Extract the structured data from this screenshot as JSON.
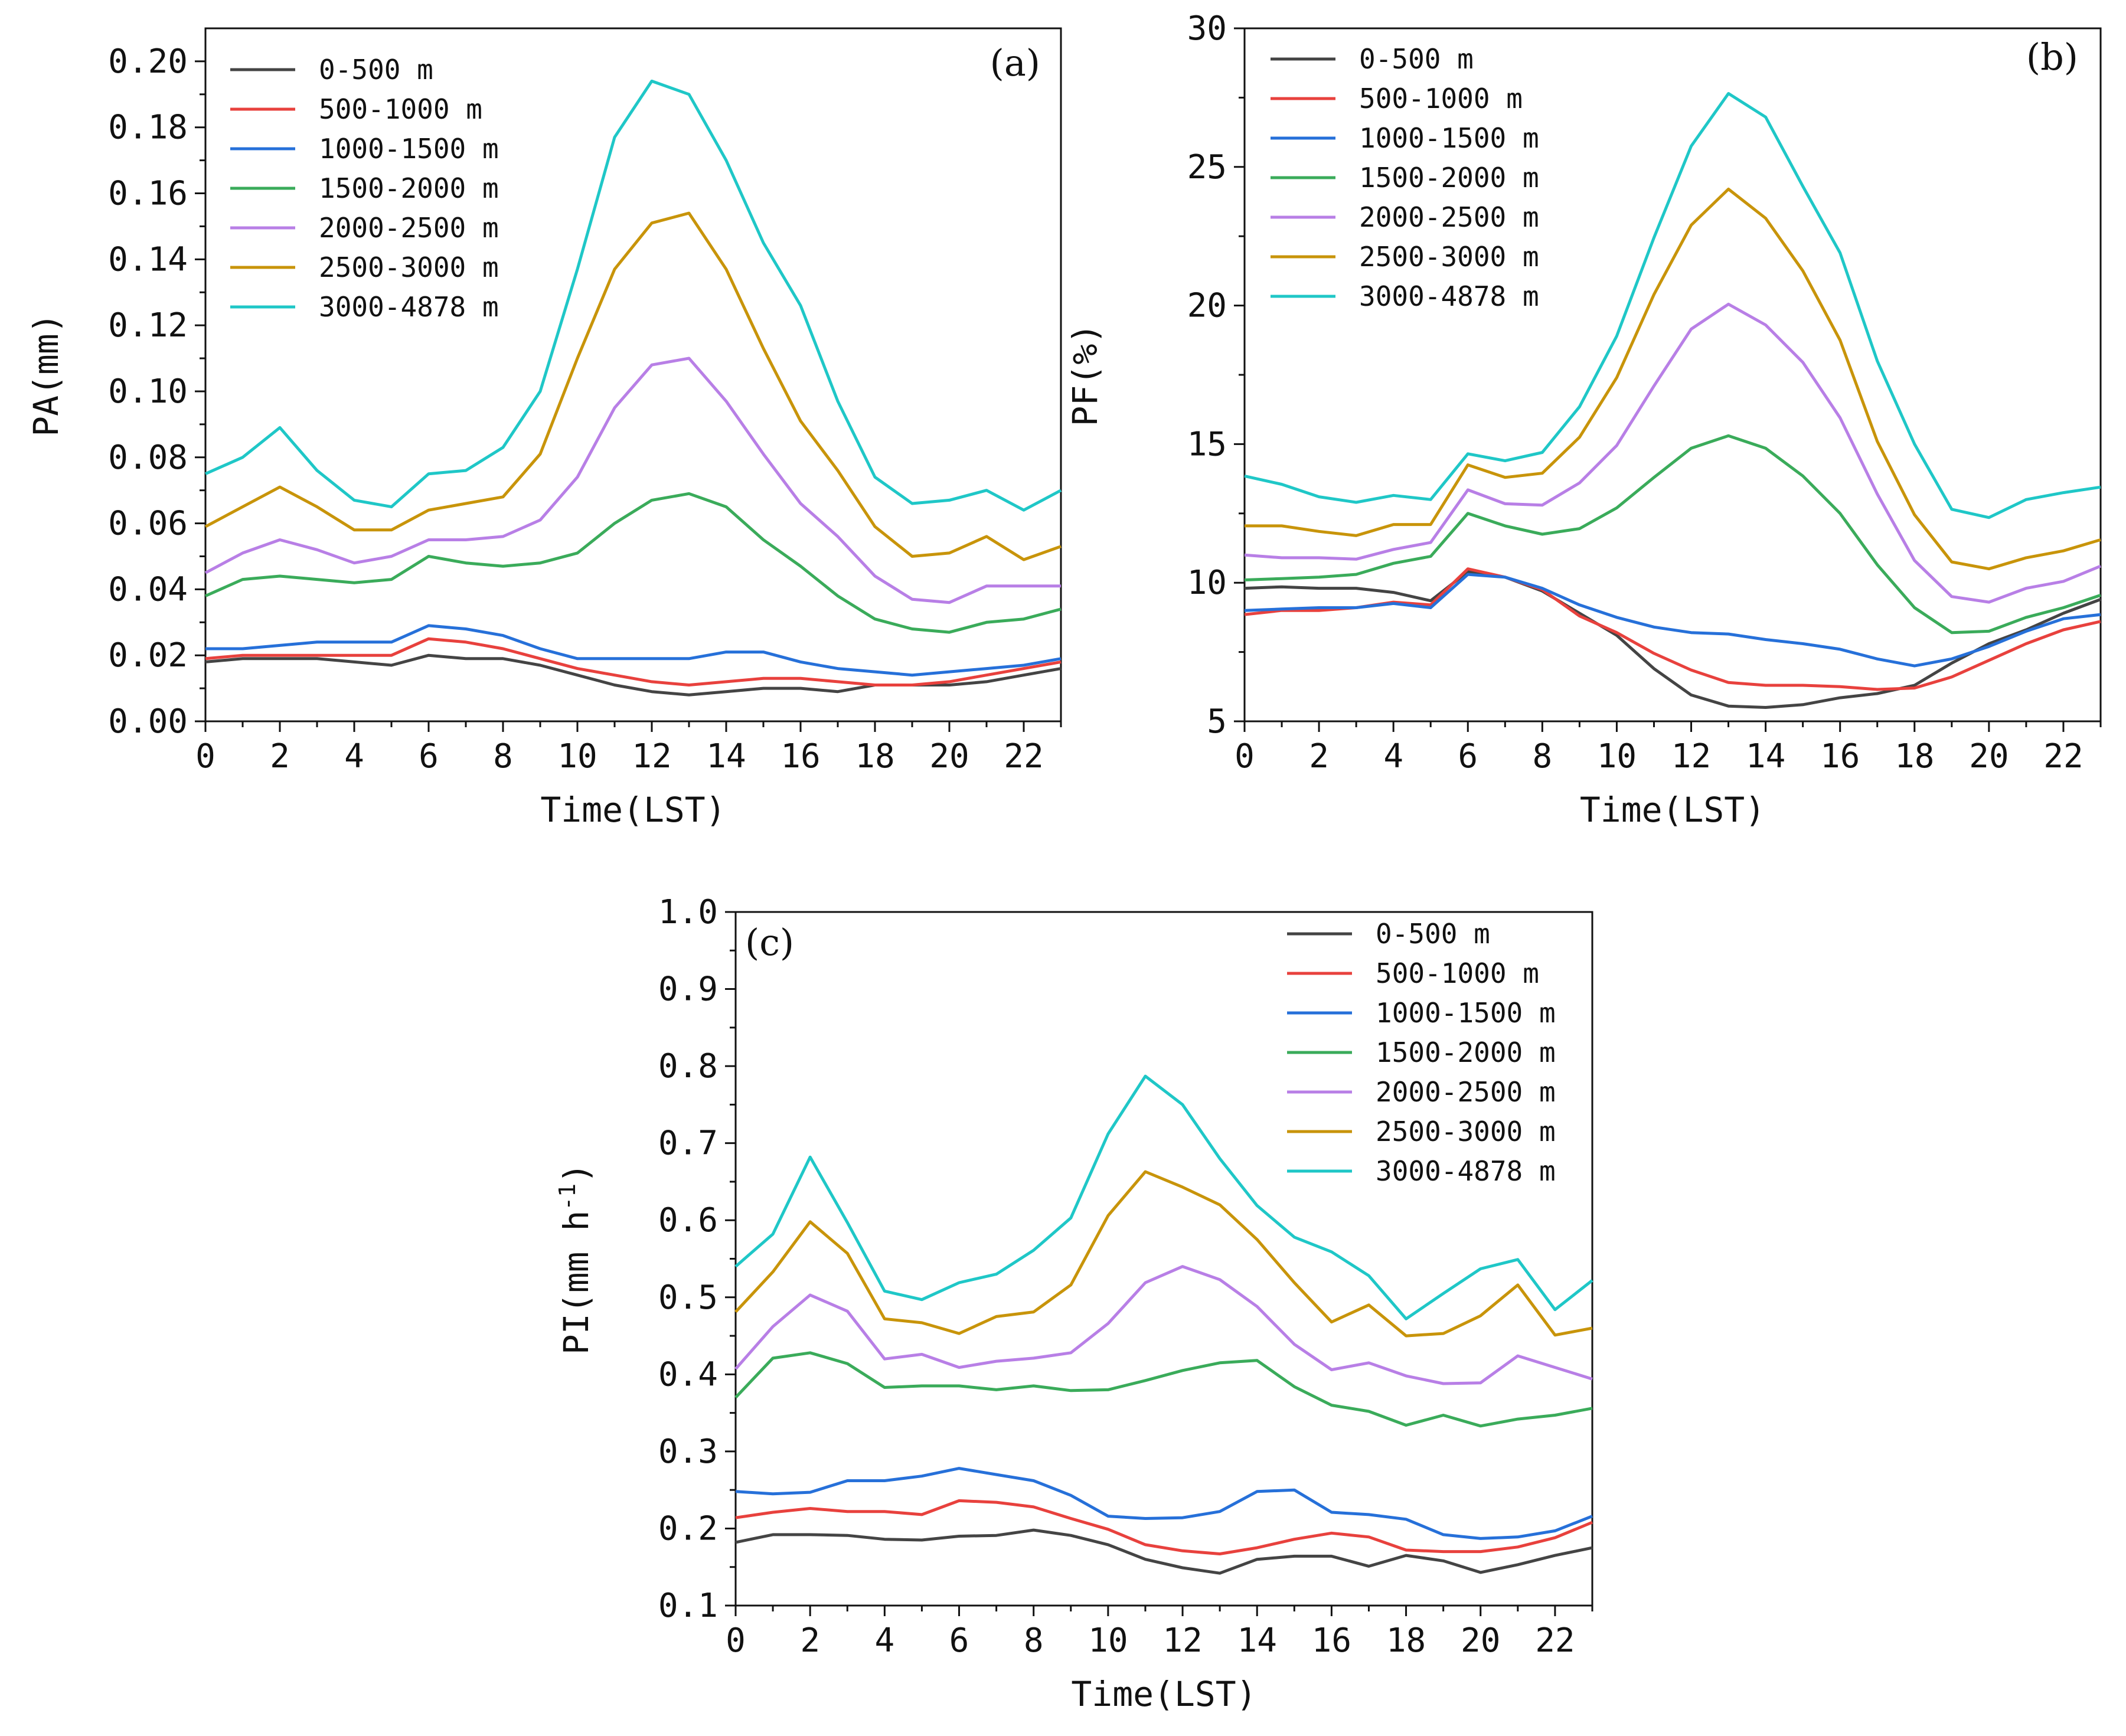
{
  "chart_data": [
    {
      "type": "line",
      "panel_tag": "(a)",
      "xlabel": "Time(LST)",
      "ylabel": "PA(mm)",
      "xlim": [
        0,
        23
      ],
      "ylim": [
        0,
        0.21
      ],
      "x_ticks": [
        0,
        2,
        4,
        6,
        8,
        10,
        12,
        14,
        16,
        18,
        20,
        22
      ],
      "y_ticks": [
        0.0,
        0.02,
        0.04,
        0.06,
        0.08,
        0.1,
        0.12,
        0.14,
        0.16,
        0.18,
        0.2
      ],
      "y_tick_labels": [
        "0.00",
        "0.02",
        "0.04",
        "0.06",
        "0.08",
        "0.10",
        "0.12",
        "0.14",
        "0.16",
        "0.18",
        "0.20"
      ],
      "legend_position": "top-left",
      "x": [
        0,
        1,
        2,
        3,
        4,
        5,
        6,
        7,
        8,
        9,
        10,
        11,
        12,
        13,
        14,
        15,
        16,
        17,
        18,
        19,
        20,
        21,
        22,
        23
      ],
      "series": [
        {
          "name": "0-500 m",
          "color": "#444444",
          "values": [
            0.018,
            0.019,
            0.019,
            0.019,
            0.018,
            0.017,
            0.02,
            0.019,
            0.019,
            0.017,
            0.014,
            0.011,
            0.009,
            0.008,
            0.009,
            0.01,
            0.01,
            0.009,
            0.011,
            0.011,
            0.011,
            0.012,
            0.014,
            0.016
          ]
        },
        {
          "name": "500-1000 m",
          "color": "#e8413d",
          "values": [
            0.019,
            0.02,
            0.02,
            0.02,
            0.02,
            0.02,
            0.025,
            0.024,
            0.022,
            0.019,
            0.016,
            0.014,
            0.012,
            0.011,
            0.012,
            0.013,
            0.013,
            0.012,
            0.011,
            0.011,
            0.012,
            0.014,
            0.016,
            0.018
          ]
        },
        {
          "name": "1000-1500 m",
          "color": "#2670d9",
          "values": [
            0.022,
            0.022,
            0.023,
            0.024,
            0.024,
            0.024,
            0.029,
            0.028,
            0.026,
            0.022,
            0.019,
            0.019,
            0.019,
            0.019,
            0.021,
            0.021,
            0.018,
            0.016,
            0.015,
            0.014,
            0.015,
            0.016,
            0.017,
            0.019
          ]
        },
        {
          "name": "1500-2000 m",
          "color": "#3aab5a",
          "values": [
            0.038,
            0.043,
            0.044,
            0.043,
            0.042,
            0.043,
            0.05,
            0.048,
            0.047,
            0.048,
            0.051,
            0.06,
            0.067,
            0.069,
            0.065,
            0.055,
            0.047,
            0.038,
            0.031,
            0.028,
            0.027,
            0.03,
            0.031,
            0.034
          ]
        },
        {
          "name": "2000-2500 m",
          "color": "#b87fe6",
          "values": [
            0.045,
            0.051,
            0.055,
            0.052,
            0.048,
            0.05,
            0.055,
            0.055,
            0.056,
            0.061,
            0.074,
            0.095,
            0.108,
            0.11,
            0.097,
            0.081,
            0.066,
            0.056,
            0.044,
            0.037,
            0.036,
            0.041,
            0.041,
            0.041
          ]
        },
        {
          "name": "2500-3000 m",
          "color": "#c8940a",
          "values": [
            0.059,
            0.065,
            0.071,
            0.065,
            0.058,
            0.058,
            0.064,
            0.066,
            0.068,
            0.081,
            0.11,
            0.137,
            0.151,
            0.154,
            0.137,
            0.113,
            0.091,
            0.076,
            0.059,
            0.05,
            0.051,
            0.056,
            0.049,
            0.053
          ]
        },
        {
          "name": "3000-4878 m",
          "color": "#1fc7c7",
          "values": [
            0.075,
            0.08,
            0.089,
            0.076,
            0.067,
            0.065,
            0.075,
            0.076,
            0.083,
            0.1,
            0.137,
            0.177,
            0.194,
            0.19,
            0.17,
            0.145,
            0.126,
            0.097,
            0.074,
            0.066,
            0.067,
            0.07,
            0.064,
            0.07
          ]
        }
      ]
    },
    {
      "type": "line",
      "panel_tag": "(b)",
      "xlabel": "Time(LST)",
      "ylabel": "PF(%)",
      "xlim": [
        0,
        23
      ],
      "ylim": [
        5,
        30
      ],
      "x_ticks": [
        0,
        2,
        4,
        6,
        8,
        10,
        12,
        14,
        16,
        18,
        20,
        22
      ],
      "y_ticks": [
        5,
        10,
        15,
        20,
        25,
        30
      ],
      "y_tick_labels": [
        "5",
        "10",
        "15",
        "20",
        "25",
        "30"
      ],
      "legend_position": "top-left",
      "x": [
        0,
        1,
        2,
        3,
        4,
        5,
        6,
        7,
        8,
        9,
        10,
        11,
        12,
        13,
        14,
        15,
        16,
        17,
        18,
        19,
        20,
        21,
        22,
        23
      ],
      "series": [
        {
          "name": "0-500 m",
          "color": "#444444",
          "values": [
            9.8,
            9.85,
            9.8,
            9.8,
            9.65,
            9.35,
            10.4,
            10.2,
            9.7,
            8.9,
            8.1,
            6.9,
            5.95,
            5.55,
            5.5,
            5.6,
            5.85,
            6.0,
            6.3,
            7.1,
            7.8,
            8.3,
            8.9,
            9.4
          ]
        },
        {
          "name": "500-1000 m",
          "color": "#e8413d",
          "values": [
            8.85,
            9.0,
            9.0,
            9.1,
            9.3,
            9.2,
            10.5,
            10.2,
            9.75,
            8.8,
            8.2,
            7.45,
            6.85,
            6.4,
            6.3,
            6.3,
            6.25,
            6.15,
            6.2,
            6.6,
            7.2,
            7.8,
            8.3,
            8.6
          ]
        },
        {
          "name": "1000-1500 m",
          "color": "#2670d9",
          "values": [
            9.0,
            9.05,
            9.1,
            9.1,
            9.25,
            9.1,
            10.3,
            10.2,
            9.8,
            9.2,
            8.75,
            8.4,
            8.2,
            8.15,
            7.95,
            7.8,
            7.6,
            7.25,
            7.0,
            7.25,
            7.7,
            8.25,
            8.7,
            8.85
          ]
        },
        {
          "name": "1500-2000 m",
          "color": "#3aab5a",
          "values": [
            10.1,
            10.15,
            10.2,
            10.3,
            10.7,
            10.95,
            12.5,
            12.05,
            11.75,
            11.95,
            12.7,
            13.8,
            14.85,
            15.3,
            14.85,
            13.85,
            12.5,
            10.65,
            9.1,
            8.2,
            8.25,
            8.75,
            9.1,
            9.55
          ]
        },
        {
          "name": "2000-2500 m",
          "color": "#b87fe6",
          "values": [
            11.0,
            10.9,
            10.9,
            10.85,
            11.2,
            11.45,
            13.35,
            12.85,
            12.8,
            13.6,
            14.95,
            17.1,
            19.15,
            20.05,
            19.3,
            17.95,
            15.95,
            13.2,
            10.8,
            9.5,
            9.3,
            9.8,
            10.05,
            10.6
          ]
        },
        {
          "name": "2500-3000 m",
          "color": "#c8940a",
          "values": [
            12.05,
            12.05,
            11.85,
            11.7,
            12.1,
            12.1,
            14.25,
            13.8,
            13.95,
            15.25,
            17.4,
            20.4,
            22.9,
            24.2,
            23.15,
            21.25,
            18.75,
            15.1,
            12.45,
            10.75,
            10.5,
            10.9,
            11.15,
            11.55
          ]
        },
        {
          "name": "3000-4878 m",
          "color": "#1fc7c7",
          "values": [
            13.85,
            13.55,
            13.1,
            12.9,
            13.15,
            13.0,
            14.65,
            14.4,
            14.7,
            16.35,
            18.9,
            22.45,
            25.75,
            27.65,
            26.8,
            24.3,
            21.9,
            18.0,
            15.0,
            12.65,
            12.35,
            13.0,
            13.25,
            13.45
          ]
        }
      ]
    },
    {
      "type": "line",
      "panel_tag": "(c)",
      "xlabel": "Time(LST)",
      "ylabel": "PI(mm h",
      "ylabel_sup": "-1",
      "ylabel_end": ")",
      "xlim": [
        0,
        23
      ],
      "ylim": [
        0.1,
        1.0
      ],
      "x_ticks": [
        0,
        2,
        4,
        6,
        8,
        10,
        12,
        14,
        16,
        18,
        20,
        22
      ],
      "y_ticks": [
        0.1,
        0.2,
        0.3,
        0.4,
        0.5,
        0.6,
        0.7,
        0.8,
        0.9,
        1.0
      ],
      "y_tick_labels": [
        "0.1",
        "0.2",
        "0.3",
        "0.4",
        "0.5",
        "0.6",
        "0.7",
        "0.8",
        "0.9",
        "1.0"
      ],
      "legend_position": "top-right",
      "x": [
        0,
        1,
        2,
        3,
        4,
        5,
        6,
        7,
        8,
        9,
        10,
        11,
        12,
        13,
        14,
        15,
        16,
        17,
        18,
        19,
        20,
        21,
        22,
        23
      ],
      "series": [
        {
          "name": "0-500 m",
          "color": "#444444",
          "values": [
            0.182,
            0.192,
            0.192,
            0.191,
            0.186,
            0.185,
            0.19,
            0.191,
            0.198,
            0.191,
            0.179,
            0.16,
            0.149,
            0.142,
            0.16,
            0.164,
            0.164,
            0.151,
            0.165,
            0.158,
            0.143,
            0.153,
            0.165,
            0.175
          ]
        },
        {
          "name": "500-1000 m",
          "color": "#e8413d",
          "values": [
            0.214,
            0.221,
            0.226,
            0.222,
            0.222,
            0.218,
            0.236,
            0.234,
            0.228,
            0.213,
            0.199,
            0.179,
            0.171,
            0.167,
            0.175,
            0.186,
            0.194,
            0.189,
            0.172,
            0.17,
            0.17,
            0.176,
            0.188,
            0.208
          ]
        },
        {
          "name": "1000-1500 m",
          "color": "#2670d9",
          "values": [
            0.248,
            0.245,
            0.247,
            0.262,
            0.262,
            0.268,
            0.278,
            0.27,
            0.262,
            0.243,
            0.216,
            0.213,
            0.214,
            0.222,
            0.248,
            0.25,
            0.221,
            0.218,
            0.212,
            0.192,
            0.187,
            0.189,
            0.197,
            0.216
          ]
        },
        {
          "name": "1500-2000 m",
          "color": "#3aab5a",
          "values": [
            0.37,
            0.421,
            0.428,
            0.414,
            0.383,
            0.385,
            0.385,
            0.38,
            0.385,
            0.379,
            0.38,
            0.392,
            0.405,
            0.415,
            0.418,
            0.384,
            0.36,
            0.352,
            0.334,
            0.347,
            0.333,
            0.342,
            0.347,
            0.356
          ]
        },
        {
          "name": "2000-2500 m",
          "color": "#b87fe6",
          "values": [
            0.407,
            0.462,
            0.503,
            0.482,
            0.42,
            0.426,
            0.409,
            0.417,
            0.421,
            0.428,
            0.466,
            0.519,
            0.54,
            0.523,
            0.488,
            0.439,
            0.406,
            0.415,
            0.398,
            0.388,
            0.389,
            0.424,
            0.409,
            0.394
          ]
        },
        {
          "name": "2500-3000 m",
          "color": "#c8940a",
          "values": [
            0.481,
            0.533,
            0.598,
            0.557,
            0.472,
            0.467,
            0.453,
            0.475,
            0.481,
            0.516,
            0.606,
            0.663,
            0.643,
            0.62,
            0.575,
            0.519,
            0.468,
            0.49,
            0.45,
            0.453,
            0.476,
            0.516,
            0.451,
            0.46
          ]
        },
        {
          "name": "3000-4878 m",
          "color": "#1fc7c7",
          "values": [
            0.54,
            0.582,
            0.682,
            0.597,
            0.508,
            0.497,
            0.519,
            0.53,
            0.561,
            0.603,
            0.712,
            0.787,
            0.75,
            0.68,
            0.619,
            0.578,
            0.559,
            0.528,
            0.472,
            0.505,
            0.537,
            0.549,
            0.484,
            0.522
          ]
        }
      ]
    }
  ]
}
